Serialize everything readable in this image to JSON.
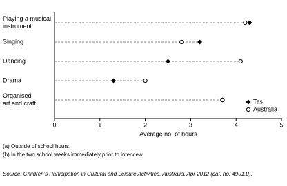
{
  "chart_data": {
    "type": "dot",
    "categories": [
      [
        "Playing a musical",
        "instrument"
      ],
      [
        "Singing"
      ],
      [
        "Dancing"
      ],
      [
        "Drama"
      ],
      [
        "Organised",
        "art and craft"
      ]
    ],
    "series": [
      {
        "name": "Tas.",
        "color": "#000000",
        "marker": "filled-diamond",
        "values": [
          4.3,
          3.2,
          2.5,
          1.3,
          3.7
        ]
      },
      {
        "name": "Australia",
        "color": "#000000",
        "marker": "open-circle",
        "values": [
          4.2,
          2.8,
          4.1,
          2.0,
          3.7
        ]
      }
    ],
    "xlabel": "Average no. of hours",
    "xlim": [
      0,
      5
    ],
    "xticks": [
      0,
      1,
      2,
      3,
      4,
      5
    ],
    "legend": "bottom-right",
    "footnotes": [
      "(a) Outside of school hours.",
      "(b) In the two school weeks immediately prior to interview."
    ],
    "source": "Source: Children's Participation in Cultural and Leisure Activities, Australia, Apr 2012 (cat. no. 4901.0)."
  }
}
